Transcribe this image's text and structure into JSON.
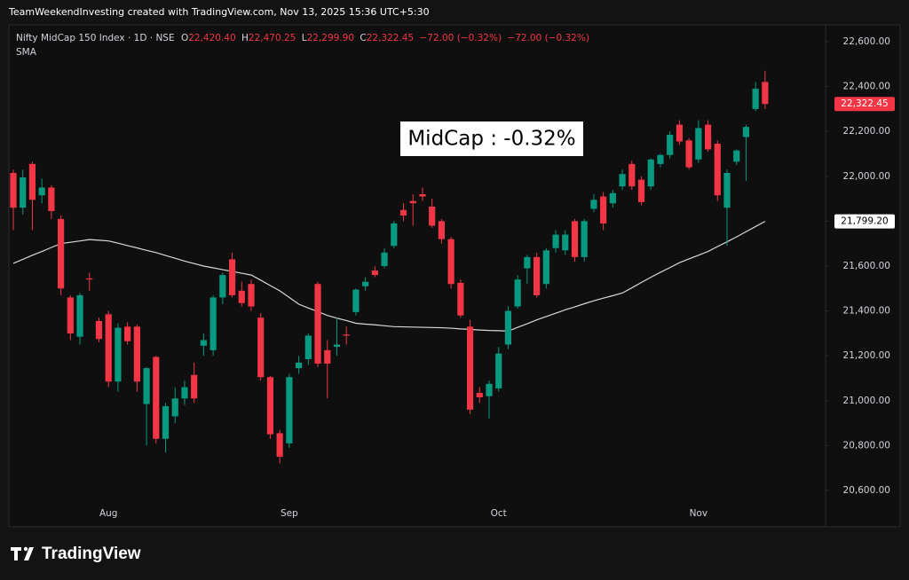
{
  "header": {
    "attribution": "TeamWeekendInvesting created with TradingView.com, Nov 13, 2025 15:36 UTC+5:30"
  },
  "footer": {
    "brand": "TradingView"
  },
  "chart_data": {
    "type": "candlestick",
    "legend": {
      "symbol": "Nifty MidCap 150 Index · 1D · NSE",
      "ohlc": [
        {
          "key": "O",
          "value": "22,420.40"
        },
        {
          "key": "H",
          "value": "22,470.25"
        },
        {
          "key": "L",
          "value": "22,299.90"
        },
        {
          "key": "C",
          "value": "22,322.45"
        }
      ],
      "changes": [
        "−72.00 (−0.32%)",
        "−72.00 (−0.32%)"
      ]
    },
    "annotation": "MidCap : -0.32%",
    "up_color": "#089981",
    "down_color": "#f23645",
    "categories": [
      null,
      null,
      null,
      null,
      null,
      null,
      null,
      null,
      null,
      null,
      "Aug",
      null,
      null,
      null,
      null,
      null,
      null,
      null,
      null,
      null,
      null,
      null,
      null,
      null,
      null,
      null,
      null,
      null,
      null,
      "Sep",
      null,
      null,
      null,
      null,
      null,
      null,
      null,
      null,
      null,
      null,
      null,
      null,
      null,
      null,
      null,
      null,
      null,
      null,
      null,
      null,
      null,
      "Oct",
      null,
      null,
      null,
      null,
      null,
      null,
      null,
      null,
      null,
      null,
      null,
      null,
      null,
      null,
      null,
      null,
      null,
      null,
      null,
      null,
      "Nov",
      null,
      null,
      null,
      null,
      null,
      null,
      null
    ],
    "open": [
      22015,
      21860,
      22055,
      21915,
      21950,
      21810,
      21460,
      21285,
      21545,
      21355,
      21385,
      21085,
      21330,
      21330,
      20985,
      21195,
      20830,
      20930,
      21010,
      21115,
      21245,
      21225,
      21460,
      21630,
      21490,
      21520,
      21370,
      21105,
      20855,
      20810,
      21145,
      21185,
      21520,
      21225,
      21240,
      21295,
      21395,
      21510,
      21580,
      21600,
      21690,
      21850,
      21890,
      21920,
      21865,
      21800,
      21720,
      21525,
      21330,
      21035,
      21020,
      21055,
      21250,
      21420,
      21590,
      21640,
      21520,
      21680,
      21670,
      21800,
      21640,
      21855,
      21910,
      21880,
      21955,
      22055,
      21985,
      21955,
      22055,
      22095,
      22230,
      22160,
      22075,
      22230,
      22145,
      21860,
      22065,
      22175,
      22300,
      22420.4
    ],
    "high": [
      22030,
      22030,
      22065,
      21990,
      21960,
      21825,
      21470,
      21480,
      21570,
      21370,
      21400,
      21345,
      21350,
      21340,
      21150,
      21200,
      20990,
      21060,
      21090,
      21170,
      21300,
      21470,
      21570,
      21660,
      21530,
      21540,
      21390,
      21110,
      20870,
      21120,
      21200,
      21300,
      21530,
      21270,
      21370,
      21330,
      21500,
      21550,
      21600,
      21680,
      21800,
      21880,
      21920,
      21950,
      21900,
      21810,
      21730,
      21540,
      21360,
      21060,
      21090,
      21240,
      21420,
      21560,
      21650,
      21660,
      21680,
      21760,
      21760,
      21810,
      21810,
      21920,
      21930,
      21940,
      22030,
      22070,
      22000,
      22080,
      22100,
      22200,
      22250,
      22170,
      22250,
      22250,
      22160,
      22030,
      22120,
      22230,
      22420,
      22470.25
    ],
    "low": [
      21760,
      21830,
      21760,
      21880,
      21810,
      21470,
      21270,
      21250,
      21490,
      21260,
      21060,
      21040,
      21250,
      21040,
      20800,
      20810,
      20770,
      20900,
      20980,
      20990,
      21200,
      21200,
      21430,
      21460,
      21420,
      21400,
      21090,
      20830,
      20720,
      20790,
      21120,
      21160,
      21150,
      21010,
      21200,
      21250,
      21380,
      21490,
      21550,
      21590,
      21680,
      21800,
      21780,
      21890,
      21770,
      21700,
      21500,
      21370,
      20940,
      20990,
      20920,
      21040,
      21230,
      21410,
      21520,
      21460,
      21500,
      21660,
      21650,
      21620,
      21620,
      21840,
      21760,
      21860,
      21940,
      21940,
      21870,
      21940,
      22040,
      22080,
      22140,
      22030,
      22060,
      22110,
      21890,
      21690,
      22050,
      21980,
      22290,
      22299.9
    ],
    "close": [
      21860,
      21995,
      21895,
      21950,
      21845,
      21500,
      21300,
      21470,
      21540,
      21275,
      21085,
      21325,
      21265,
      21085,
      21145,
      20830,
      20975,
      21010,
      21060,
      21010,
      21270,
      21460,
      21560,
      21470,
      21435,
      21420,
      21105,
      20850,
      20750,
      21105,
      21170,
      21290,
      21165,
      21165,
      21250,
      21290,
      21495,
      21530,
      21560,
      21660,
      21790,
      21825,
      21880,
      21910,
      21780,
      21720,
      21520,
      21380,
      20960,
      21015,
      21075,
      21210,
      21400,
      21540,
      21640,
      21470,
      21670,
      21740,
      21740,
      21640,
      21800,
      21895,
      21790,
      21925,
      22010,
      21955,
      21885,
      22075,
      22095,
      22185,
      22155,
      22040,
      22215,
      22120,
      21915,
      22015,
      22115,
      22220,
      22390,
      22322.45
    ],
    "sma": {
      "name": "SMA",
      "color": "#d9d9d9",
      "values": [
        21612,
        21630,
        21648,
        21665,
        21683,
        21700,
        21706,
        21712,
        21718,
        21715,
        21712,
        21702,
        21691,
        21681,
        21670,
        21660,
        21647,
        21635,
        21622,
        21611,
        21600,
        21592,
        21584,
        21576,
        21568,
        21560,
        21537,
        21513,
        21490,
        21460,
        21430,
        21413,
        21397,
        21380,
        21368,
        21357,
        21345,
        21341,
        21338,
        21334,
        21330,
        21329,
        21328,
        21327,
        21326,
        21325,
        21323,
        21320,
        21318,
        21315,
        21313,
        21312,
        21310,
        21327,
        21343,
        21360,
        21375,
        21390,
        21405,
        21418,
        21432,
        21445,
        21457,
        21468,
        21480,
        21503,
        21527,
        21550,
        21572,
        21593,
        21615,
        21632,
        21648,
        21665,
        21687,
        21708,
        21730,
        21753,
        21776,
        21799.2
      ]
    },
    "price_labels": [
      {
        "value": 22322.45,
        "label": "22,322.45",
        "color": "#f23645",
        "text_color": "#ffffff"
      },
      {
        "value": 21799.2,
        "label": "21,799.20",
        "color": "#ffffff",
        "text_color": "#000000"
      }
    ],
    "ylim": [
      20438,
      22675
    ],
    "yticks": [
      {
        "value": 20600,
        "label": "20,600.00"
      },
      {
        "value": 20800,
        "label": "20,800.00"
      },
      {
        "value": 21000,
        "label": "21,000.00"
      },
      {
        "value": 21200,
        "label": "21,200.00"
      },
      {
        "value": 21400,
        "label": "21,400.00"
      },
      {
        "value": 21600,
        "label": "21,600.00"
      },
      {
        "value": 21800,
        "label": "21,800.00"
      },
      {
        "value": 22000,
        "label": "22,000.00"
      },
      {
        "value": 22200,
        "label": "22,200.00"
      },
      {
        "value": 22400,
        "label": "22,400.00"
      },
      {
        "value": 22600,
        "label": "22,600.00"
      }
    ],
    "grid": false
  }
}
